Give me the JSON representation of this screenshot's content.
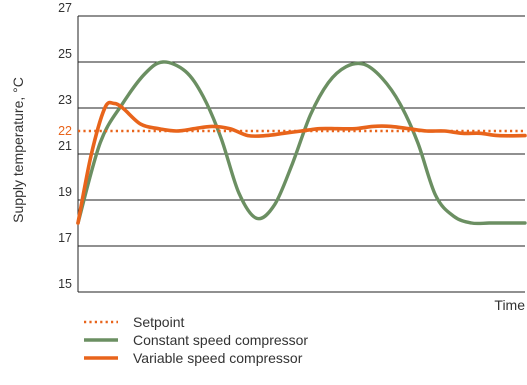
{
  "chart_data": {
    "type": "line",
    "ylabel": "Supply temperature, °C",
    "xlabel": "Time",
    "ylim": [
      15,
      27
    ],
    "yticks": [
      15,
      17,
      19,
      21,
      23,
      25,
      27
    ],
    "setpoint_tick": 22,
    "grid": true,
    "legend_position": "bottom-left",
    "x_range": [
      0,
      100
    ],
    "series": [
      {
        "name": "Setpoint",
        "style": "dotted",
        "color": "#e8641b",
        "x": [
          0,
          100
        ],
        "y": [
          22,
          22
        ]
      },
      {
        "name": "Constant speed compressor",
        "style": "solid",
        "color": "#6b8f62",
        "x": [
          0,
          5,
          10,
          15,
          19,
          24,
          28,
          32,
          36,
          40,
          44,
          48,
          52,
          56,
          60,
          64,
          68,
          72,
          76,
          80,
          84,
          88,
          92,
          96,
          100
        ],
        "y": [
          18.0,
          21.5,
          23.2,
          24.5,
          25.0,
          24.6,
          23.5,
          21.7,
          19.3,
          18.2,
          18.8,
          20.6,
          22.7,
          24.1,
          24.8,
          24.9,
          24.3,
          23.2,
          21.5,
          19.2,
          18.3,
          18.0,
          18.0,
          18.0,
          18.0
        ]
      },
      {
        "name": "Variable speed compressor",
        "style": "solid",
        "color": "#e8641b",
        "x": [
          0,
          3,
          6,
          8,
          10,
          14,
          18,
          22,
          26,
          30,
          34,
          38,
          42,
          46,
          50,
          54,
          58,
          62,
          66,
          70,
          74,
          78,
          82,
          86,
          90,
          94,
          100
        ],
        "y": [
          18.0,
          21.0,
          23.0,
          23.2,
          23.0,
          22.3,
          22.1,
          22.0,
          22.1,
          22.2,
          22.1,
          21.8,
          21.8,
          21.9,
          22.0,
          22.1,
          22.1,
          22.1,
          22.2,
          22.2,
          22.1,
          22.0,
          22.0,
          21.9,
          21.9,
          21.8,
          21.8
        ]
      }
    ]
  }
}
